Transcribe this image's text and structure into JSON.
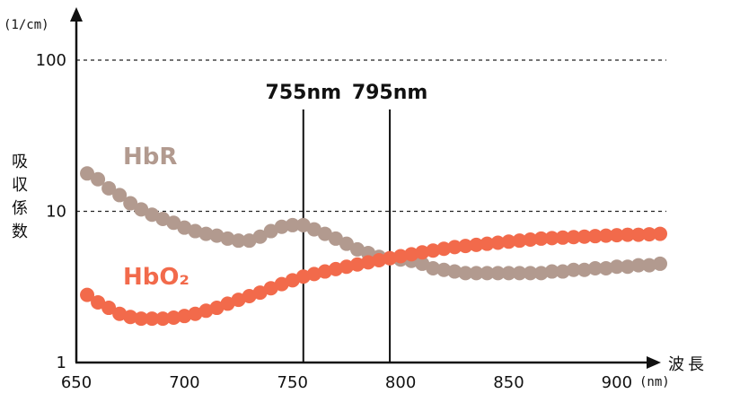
{
  "chart_data": {
    "type": "scatter",
    "y_scale": "log",
    "xlim": [
      650,
      920
    ],
    "ylim": [
      1,
      100
    ],
    "x_ticks": [
      "650",
      "700",
      "750",
      "800",
      "850",
      "900"
    ],
    "x_tick_values": [
      650,
      700,
      750,
      800,
      850,
      900
    ],
    "y_ticks": [
      "1",
      "10",
      "100"
    ],
    "y_tick_values": [
      1,
      10,
      100
    ],
    "x_unit": "(nm)",
    "y_unit": "(1/cm)",
    "xlabel": "波長",
    "ylabel": "吸収係数",
    "gridlines": [
      10,
      100
    ],
    "markers": [
      {
        "x": 755,
        "label": "755nm"
      },
      {
        "x": 795,
        "label": "795nm"
      }
    ],
    "series": [
      {
        "name": "HbR",
        "color": "#b29a8f",
        "x": [
          655,
          660,
          665,
          670,
          675,
          680,
          685,
          690,
          695,
          700,
          705,
          710,
          715,
          720,
          725,
          730,
          735,
          740,
          745,
          750,
          755,
          760,
          765,
          770,
          775,
          780,
          785,
          790,
          795,
          800,
          805,
          810,
          815,
          820,
          825,
          830,
          835,
          840,
          845,
          850,
          855,
          860,
          865,
          870,
          875,
          880,
          885,
          890,
          895,
          900,
          905,
          910,
          915,
          920
        ],
        "y": [
          17.8,
          16.3,
          14.2,
          12.8,
          11.3,
          10.3,
          9.5,
          8.9,
          8.4,
          7.8,
          7.4,
          7.1,
          6.9,
          6.6,
          6.4,
          6.4,
          6.8,
          7.4,
          7.9,
          8.1,
          8.1,
          7.6,
          7.1,
          6.6,
          6.1,
          5.6,
          5.3,
          5.0,
          4.9,
          4.8,
          4.7,
          4.5,
          4.2,
          4.1,
          4.0,
          3.9,
          3.9,
          3.9,
          3.9,
          3.9,
          3.9,
          3.9,
          3.9,
          4.0,
          4.0,
          4.1,
          4.1,
          4.2,
          4.2,
          4.3,
          4.3,
          4.4,
          4.4,
          4.5
        ]
      },
      {
        "name": "HbO₂",
        "color": "#f26a4b",
        "x": [
          655,
          660,
          665,
          670,
          675,
          680,
          685,
          690,
          695,
          700,
          705,
          710,
          715,
          720,
          725,
          730,
          735,
          740,
          745,
          750,
          755,
          760,
          765,
          770,
          775,
          780,
          785,
          790,
          795,
          800,
          805,
          810,
          815,
          820,
          825,
          830,
          835,
          840,
          845,
          850,
          855,
          860,
          865,
          870,
          875,
          880,
          885,
          890,
          895,
          900,
          905,
          910,
          915,
          920
        ],
        "y": [
          2.8,
          2.5,
          2.3,
          2.1,
          2.0,
          1.95,
          1.95,
          1.95,
          1.98,
          2.03,
          2.1,
          2.2,
          2.3,
          2.45,
          2.6,
          2.75,
          2.9,
          3.1,
          3.3,
          3.5,
          3.7,
          3.85,
          4.0,
          4.15,
          4.3,
          4.45,
          4.6,
          4.75,
          4.9,
          5.05,
          5.2,
          5.35,
          5.5,
          5.65,
          5.8,
          5.9,
          6.0,
          6.1,
          6.2,
          6.3,
          6.4,
          6.5,
          6.6,
          6.65,
          6.7,
          6.75,
          6.8,
          6.85,
          6.9,
          6.95,
          7.0,
          7.0,
          7.05,
          7.1
        ]
      }
    ]
  }
}
